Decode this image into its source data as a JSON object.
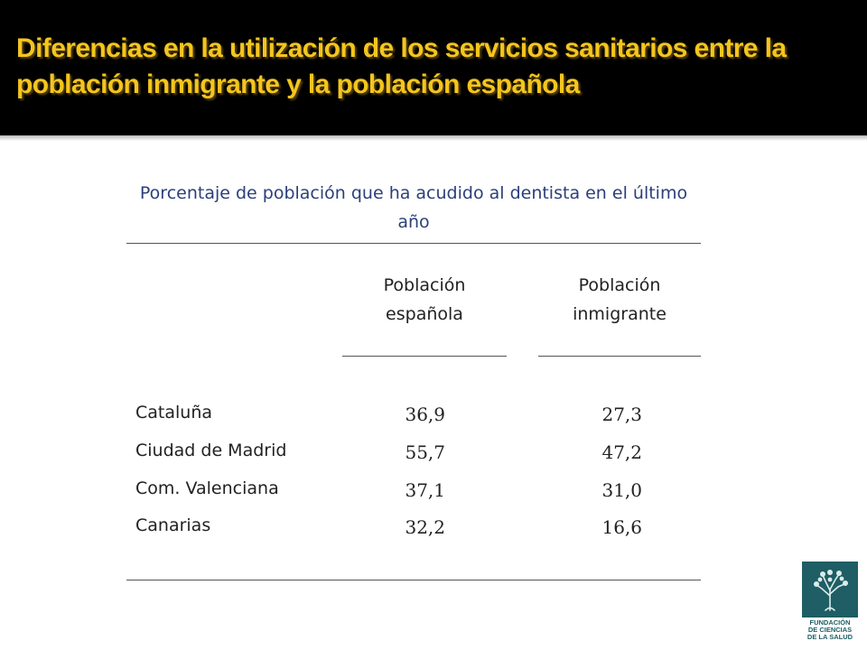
{
  "slide": {
    "title": "Diferencias en la utilización de los servicios sanitarios entre la población inmigrante y la población española"
  },
  "table": {
    "caption": "Porcentaje de población que ha acudido al dentista en el último año",
    "columns": [
      "Población española",
      "Población inmigrante"
    ],
    "rows": [
      {
        "region": "Cataluña",
        "espanola": "36,9",
        "inmigrante": "27,3"
      },
      {
        "region": "Ciudad de Madrid",
        "espanola": "55,7",
        "inmigrante": "47,2"
      },
      {
        "region": "Com. Valenciana",
        "espanola": "37,1",
        "inmigrante": "31,0"
      },
      {
        "region": "Canarias",
        "espanola": "32,2",
        "inmigrante": "16,6"
      }
    ]
  },
  "logo": {
    "icon": "tree-icon",
    "line1": "FUNDACIÓN",
    "line2": "DE CIENCIAS",
    "line3": "DE LA SALUD"
  },
  "colors": {
    "header_bg": "#000000",
    "title_text": "#f4c51e",
    "caption_text": "#2b3f7a",
    "logo": "#1e5e64"
  }
}
